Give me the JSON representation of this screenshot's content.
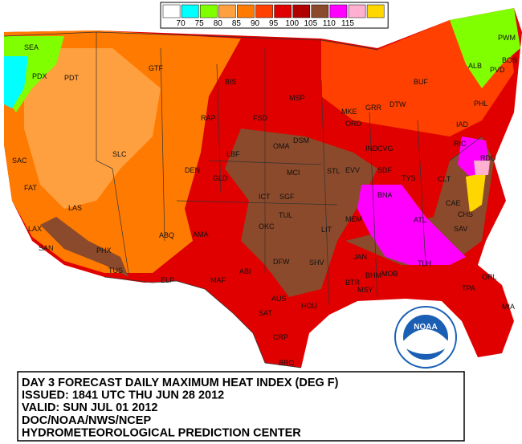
{
  "legend": {
    "labels": [
      70,
      75,
      80,
      85,
      90,
      95,
      100,
      105,
      110,
      115
    ],
    "colors": [
      "#ffffff",
      "#00ffff",
      "#80ff00",
      "#ffa040",
      "#ff7a00",
      "#ff4000",
      "#e00000",
      "#b00000",
      "#8b4a2b",
      "#ff00ff",
      "#ffb0d0",
      "#ffd700"
    ]
  },
  "cities": [
    "SEA",
    "PDX",
    "PDT",
    "GTF",
    "BIS",
    "MSP",
    "FSD",
    "RAP",
    "OMA",
    "DSM",
    "SLC",
    "DEN",
    "GLD",
    "LBF",
    "SAC",
    "FAT",
    "LAS",
    "LAX",
    "SAN",
    "PHX",
    "TUS",
    "ABQ",
    "AMA",
    "ICT",
    "MCI",
    "SGF",
    "STL",
    "OKC",
    "TUL",
    "LIT",
    "MEM",
    "BNA",
    "DFW",
    "SHV",
    "ELP",
    "MAF",
    "ABI",
    "SAT",
    "AUS",
    "HOU",
    "CRP",
    "BRO",
    "JAN",
    "BHM",
    "ATL",
    "CAE",
    "CLT",
    "CHS",
    "SAV",
    "TLH",
    "TPA",
    "ORL",
    "MIA",
    "MOB",
    "MSY",
    "BTR",
    "ORD",
    "DTW",
    "GRR",
    "MKE",
    "BUF",
    "ALB",
    "PWM",
    "BOS",
    "PVD",
    "PHL",
    "RIC",
    "RDU",
    "IAD",
    "CVG",
    "IND",
    "SDF",
    "EVV",
    "TYS"
  ],
  "logo": "NOAA",
  "caption": [
    "DAY 3 FORECAST DAILY MAXIMUM HEAT INDEX (DEG F)",
    "ISSUED: 1841 UTC THU JUN 28 2012",
    "VALID: SUN JUL 01 2012",
    "DOC/NOAA/NWS/NCEP",
    "HYDROMETEOROLOGICAL PREDICTION CENTER"
  ]
}
